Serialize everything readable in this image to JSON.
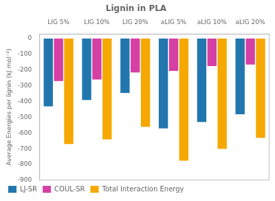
{
  "chart_data": {
    "type": "bar",
    "title": "Lignin in PLA",
    "ylabel": "Average Energies per lignin (kJ mol⁻¹)",
    "categories": [
      "LIG 5%",
      "LIG 10%",
      "LIG 20%",
      "aLIG 5%",
      "aLIG 10%",
      "aLIG 20%"
    ],
    "series": [
      {
        "name": "LJ-SR",
        "color": "#2176AE",
        "values": [
          -430,
          -390,
          -345,
          -570,
          -530,
          -480
        ]
      },
      {
        "name": "COUL-SR",
        "color": "#D63FA3",
        "values": [
          -270,
          -260,
          -215,
          -205,
          -175,
          -165
        ]
      },
      {
        "name": "Total Interaction Energy",
        "color": "#F5A800",
        "values": [
          -670,
          -640,
          -560,
          -775,
          -700,
          -630
        ]
      }
    ],
    "ylim": [
      -900,
      30
    ],
    "yticks": [
      0,
      -100,
      -200,
      -300,
      -400,
      -500,
      -600,
      -700,
      -800,
      -900
    ],
    "grid": false,
    "legend": "lower left"
  }
}
